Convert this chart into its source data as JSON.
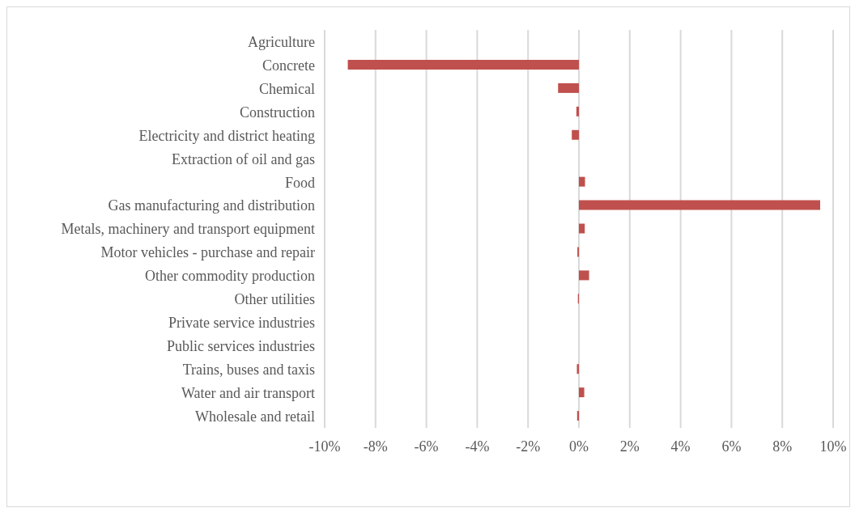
{
  "chart_data": {
    "type": "bar",
    "orientation": "horizontal",
    "categories": [
      "Agriculture",
      "Concrete",
      "Chemical",
      "Construction",
      "Electricity and district heating",
      "Extraction of oil and gas",
      "Food",
      "Gas manufacturing and distribution",
      "Metals, machinery and transport equipment",
      "Motor vehicles - purchase and repair",
      "Other commodity production",
      "Other utilities",
      "Private service industries",
      "Public services industries",
      "Trains, buses and taxis",
      "Water and air transport",
      "Wholesale and retail"
    ],
    "values": [
      null,
      -9.09,
      -0.82,
      -0.1,
      -0.28,
      0,
      0.24,
      9.49,
      0.23,
      -0.06,
      0.4,
      -0.04,
      0,
      0,
      -0.08,
      0.21,
      -0.07
    ],
    "color": "#c0504d",
    "xlim": [
      -10,
      10
    ],
    "xticks": [
      {
        "value": -10,
        "label": "-10%"
      },
      {
        "value": -8,
        "label": "-8%"
      },
      {
        "value": -6,
        "label": "-6%"
      },
      {
        "value": -4,
        "label": "-4%"
      },
      {
        "value": -2,
        "label": "-2%"
      },
      {
        "value": 0,
        "label": "0%"
      },
      {
        "value": 2,
        "label": "2%"
      },
      {
        "value": 4,
        "label": "4%"
      },
      {
        "value": 6,
        "label": "6%"
      },
      {
        "value": 8,
        "label": "8%"
      },
      {
        "value": 10,
        "label": "10%"
      }
    ],
    "grid": "x"
  }
}
